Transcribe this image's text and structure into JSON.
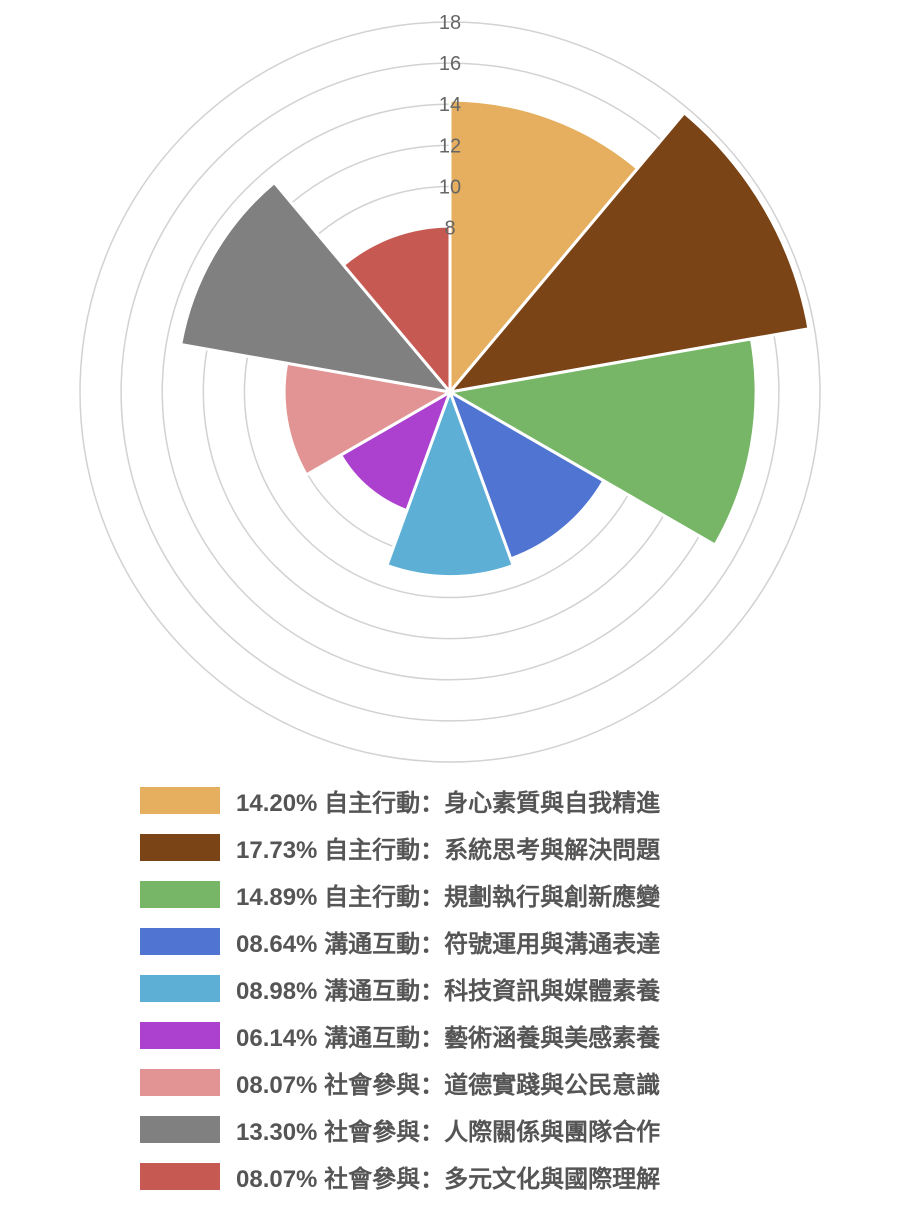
{
  "chart_data": {
    "type": "polarArea",
    "r_axis": {
      "min": 0,
      "max": 18,
      "ticks": [
        "18",
        "16",
        "14",
        "12",
        "10",
        "8"
      ],
      "grid": true
    },
    "legend_position": "bottom",
    "series": [
      {
        "label": "14.20% 自主行動：身心素質與自我精進",
        "value": 14.2,
        "color": "#E5AF5F"
      },
      {
        "label": "17.73% 自主行動：系統思考與解決問題",
        "value": 17.73,
        "color": "#7B4416"
      },
      {
        "label": "14.89% 自主行動：規劃執行與創新應變",
        "value": 14.89,
        "color": "#76B666"
      },
      {
        "label": "08.64% 溝通互動：符號運用與溝通表達",
        "value": 8.64,
        "color": "#4F74D1"
      },
      {
        "label": "08.98% 溝通互動：科技資訊與媒體素養",
        "value": 8.98,
        "color": "#5DAFD5"
      },
      {
        "label": "06.14% 溝通互動：藝術涵養與美感素養",
        "value": 6.14,
        "color": "#AC41D0"
      },
      {
        "label": "08.07% 社會參與：道德實踐與公民意識",
        "value": 8.07,
        "color": "#E29393"
      },
      {
        "label": "13.30% 社會參與：人際關係與團隊合作",
        "value": 13.3,
        "color": "#808080"
      },
      {
        "label": "08.07% 社會參與：多元文化與國際理解",
        "value": 8.07,
        "color": "#C65A53"
      }
    ]
  }
}
